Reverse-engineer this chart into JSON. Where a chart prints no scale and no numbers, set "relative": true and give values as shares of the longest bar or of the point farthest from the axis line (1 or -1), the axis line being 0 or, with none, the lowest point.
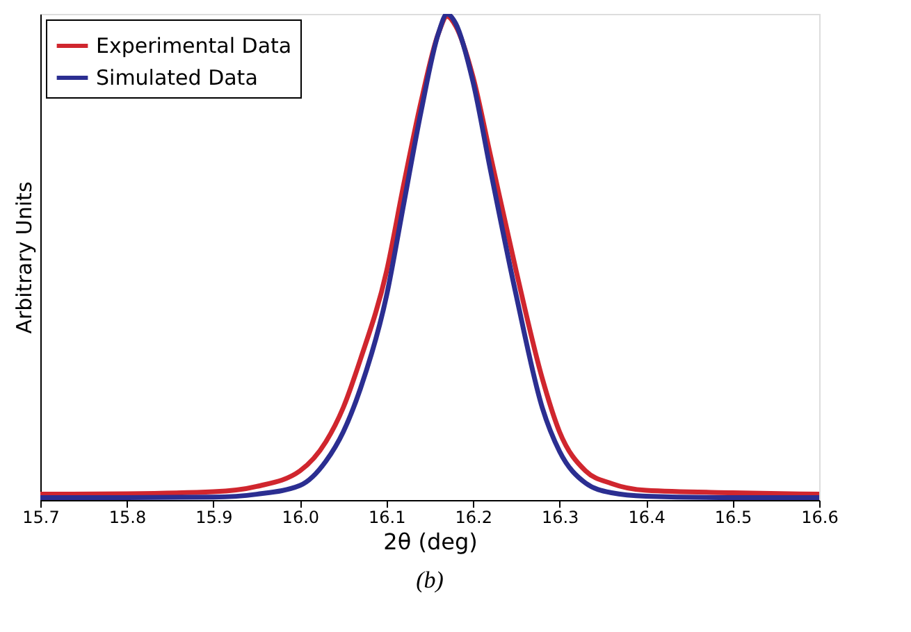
{
  "chart_data": {
    "type": "line",
    "relative": true,
    "xlabel": "2θ (deg)",
    "ylabel": "Arbitrary Units",
    "annotations": [
      "(b)"
    ],
    "xlim": [
      15.7,
      16.6
    ],
    "xticks": [
      {
        "value": 15.7,
        "label": "15.7"
      },
      {
        "value": 15.8,
        "label": "15.8"
      },
      {
        "value": 15.9,
        "label": "15.9"
      },
      {
        "value": 16.0,
        "label": "16.0"
      },
      {
        "value": 16.1,
        "label": "16.1"
      },
      {
        "value": 16.2,
        "label": "16.2"
      },
      {
        "value": 16.3,
        "label": "16.3"
      },
      {
        "value": 16.4,
        "label": "16.4"
      },
      {
        "value": 16.5,
        "label": "16.5"
      },
      {
        "value": 16.6,
        "label": "16.6"
      }
    ],
    "x": [
      15.7,
      15.8,
      15.9,
      15.95,
      16.0,
      16.03,
      16.05,
      16.07,
      16.1,
      16.12,
      16.14,
      16.16,
      16.17,
      16.18,
      16.2,
      16.22,
      16.25,
      16.28,
      16.3,
      16.33,
      16.36,
      16.4,
      16.5,
      16.6
    ],
    "legend": "top left",
    "grid": false,
    "line_style": "solid",
    "marker": "none",
    "series": [
      {
        "name": "Experimental Data",
        "color": "#d0262e",
        "values": [
          0.012,
          0.013,
          0.017,
          0.028,
          0.06,
          0.12,
          0.19,
          0.29,
          0.47,
          0.65,
          0.82,
          0.96,
          0.995,
          0.975,
          0.87,
          0.71,
          0.47,
          0.25,
          0.14,
          0.06,
          0.034,
          0.02,
          0.015,
          0.012
        ]
      },
      {
        "name": "Simulated Data",
        "color": "#2b2e91",
        "values": [
          0.005,
          0.005,
          0.006,
          0.012,
          0.03,
          0.08,
          0.14,
          0.23,
          0.42,
          0.61,
          0.8,
          0.96,
          1.0,
          0.98,
          0.86,
          0.68,
          0.42,
          0.19,
          0.1,
          0.035,
          0.015,
          0.008,
          0.005,
          0.005
        ]
      }
    ]
  }
}
